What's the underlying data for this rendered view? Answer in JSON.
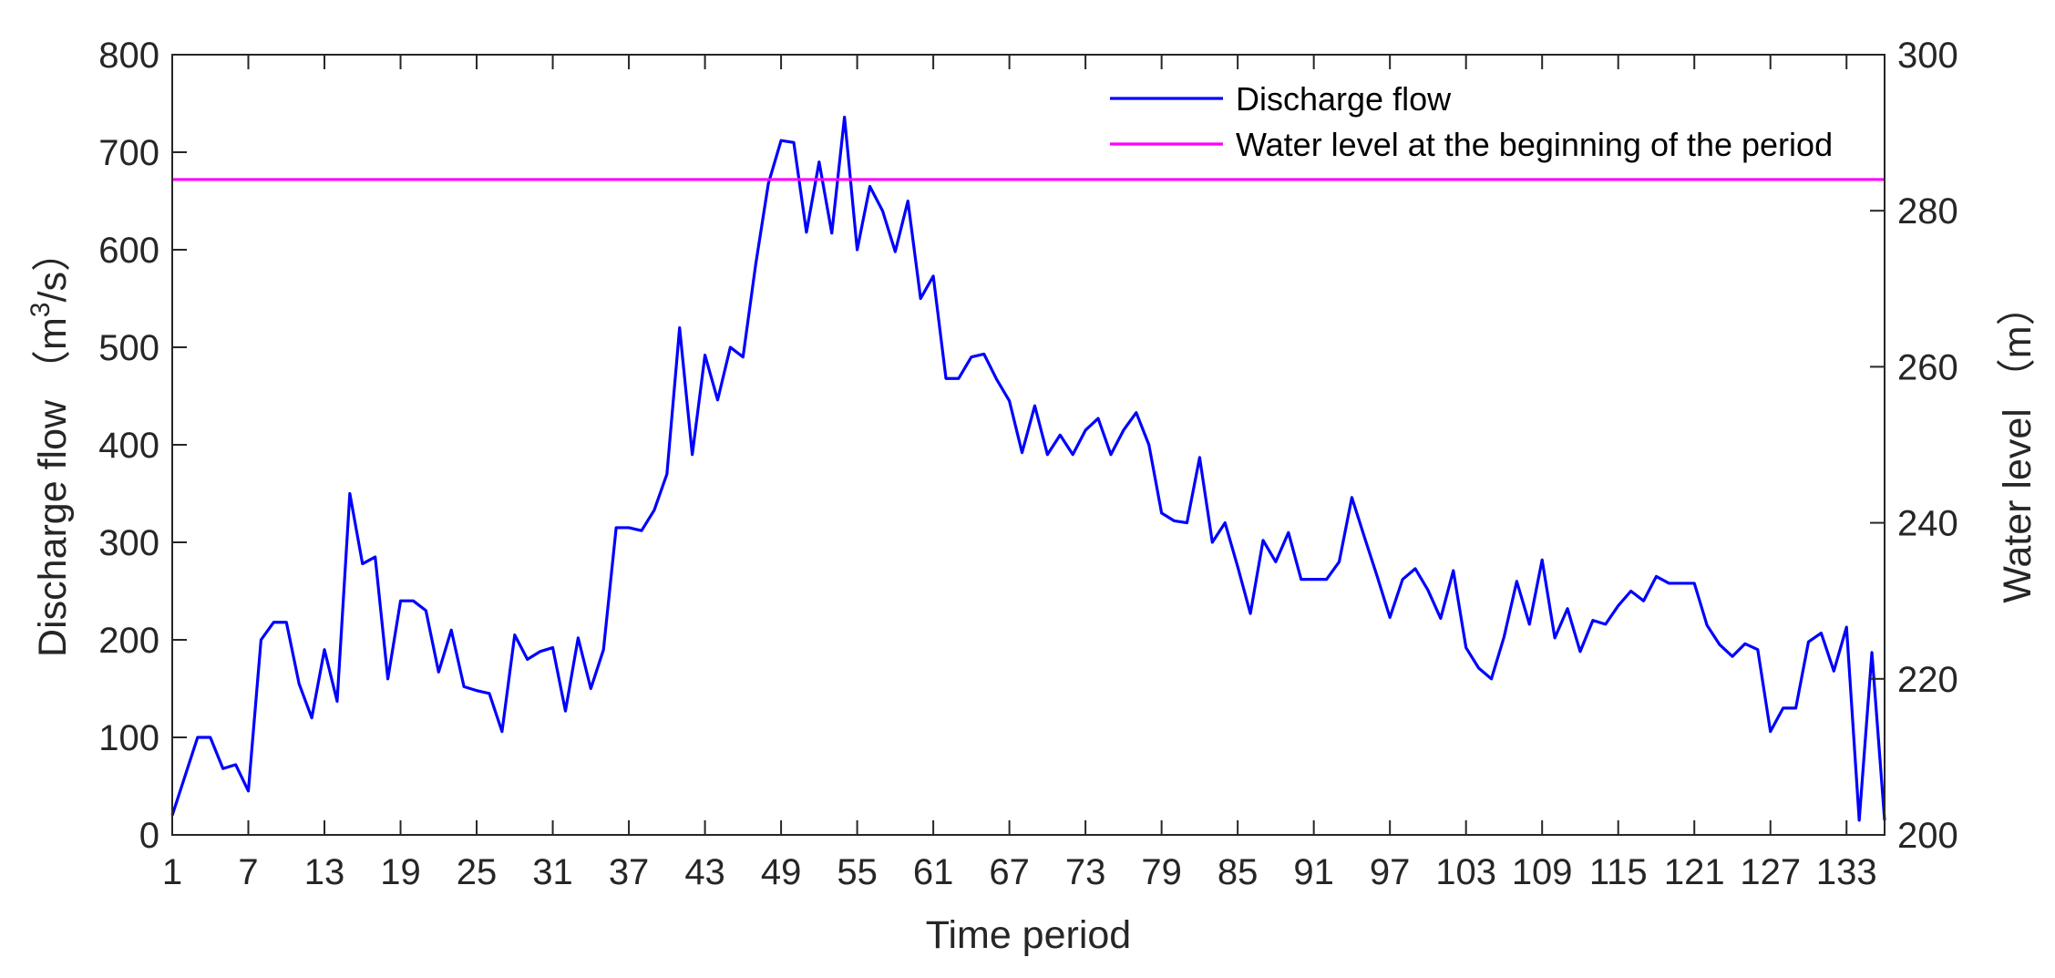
{
  "chart_data": {
    "type": "line",
    "xlabel": "Time period",
    "ylabel": "Discharge flow （m3/s）",
    "ylabel_parts": {
      "pre": "Discharge flow （m",
      "sup": "3",
      "post": "/s）"
    },
    "y2label": "Water level （m）",
    "x_ticks": [
      1,
      7,
      13,
      19,
      25,
      31,
      37,
      43,
      49,
      55,
      61,
      67,
      73,
      79,
      85,
      91,
      97,
      103,
      109,
      115,
      121,
      127,
      133
    ],
    "xlim": [
      1,
      136
    ],
    "ylim": [
      0,
      800
    ],
    "y_ticks": [
      0,
      100,
      200,
      300,
      400,
      500,
      600,
      700,
      800
    ],
    "y2lim": [
      200,
      300
    ],
    "y2_ticks": [
      200,
      220,
      240,
      260,
      280,
      300
    ],
    "grid": false,
    "legend_position": "top-right",
    "colors": {
      "discharge": "#0000ff",
      "water_level": "#ff00ff",
      "axis": "#262626"
    },
    "series": [
      {
        "name": "Discharge flow",
        "axis": "left",
        "x": [
          1,
          2,
          3,
          4,
          5,
          6,
          7,
          8,
          9,
          10,
          11,
          12,
          13,
          14,
          15,
          16,
          17,
          18,
          19,
          20,
          21,
          22,
          23,
          24,
          25,
          26,
          27,
          28,
          29,
          30,
          31,
          32,
          33,
          34,
          35,
          36,
          37,
          38,
          39,
          40,
          41,
          42,
          43,
          44,
          45,
          46,
          47,
          48,
          49,
          50,
          51,
          52,
          53,
          54,
          55,
          56,
          57,
          58,
          59,
          60,
          61,
          62,
          63,
          64,
          65,
          66,
          67,
          68,
          69,
          70,
          71,
          72,
          73,
          74,
          75,
          76,
          77,
          78,
          79,
          80,
          81,
          82,
          83,
          84,
          85,
          86,
          87,
          88,
          89,
          90,
          91,
          92,
          93,
          94,
          95,
          96,
          97,
          98,
          99,
          100,
          101,
          102,
          103,
          104,
          105,
          106,
          107,
          108,
          109,
          110,
          111,
          112,
          113,
          114,
          115,
          116,
          117,
          118,
          119,
          120,
          121,
          122,
          123,
          124,
          125,
          126,
          127,
          128,
          129,
          130,
          131,
          132,
          133,
          134,
          135,
          136
        ],
        "values": [
          20,
          60,
          100,
          100,
          68,
          72,
          45,
          200,
          218,
          218,
          155,
          120,
          190,
          137,
          350,
          278,
          285,
          160,
          240,
          240,
          230,
          167,
          210,
          152,
          148,
          145,
          106,
          205,
          180,
          188,
          192,
          127,
          202,
          150,
          190,
          315,
          315,
          312,
          333,
          370,
          520,
          390,
          492,
          446,
          500,
          490,
          585,
          668,
          712,
          710,
          618,
          690,
          617,
          736,
          600,
          665,
          640,
          598,
          650,
          550,
          573,
          468,
          468,
          490,
          493,
          467,
          445,
          392,
          440,
          390,
          410,
          390,
          415,
          427,
          390,
          415,
          433,
          400,
          330,
          322,
          320,
          387,
          300,
          320,
          275,
          227,
          302,
          280,
          310,
          262,
          262,
          262,
          280,
          346,
          305,
          265,
          223,
          262,
          273,
          251,
          222,
          271,
          192,
          171,
          160,
          203,
          260,
          216,
          282,
          202,
          232,
          188,
          220,
          216,
          235,
          250,
          240,
          265,
          258,
          258,
          258,
          215,
          195,
          183,
          196,
          190,
          106,
          130,
          130,
          198,
          207,
          168,
          213,
          15,
          187,
          15
        ]
      },
      {
        "name": "Water level at the beginning of the period",
        "axis": "right",
        "x": [
          1,
          136
        ],
        "values": [
          284,
          284
        ]
      }
    ]
  }
}
